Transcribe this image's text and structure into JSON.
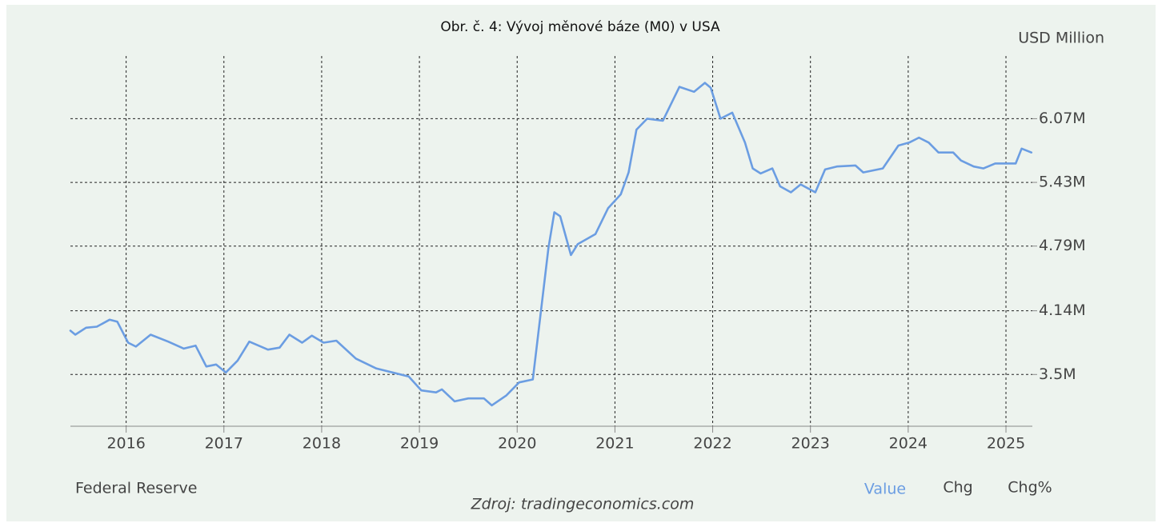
{
  "chart_data": {
    "type": "line",
    "title": "Obr. č. 4: Vývoj měnové báze (M0) v USA",
    "unit_label": "USD Million",
    "provider": "Federal Reserve",
    "tabs": [
      "Value",
      "Chg",
      "Chg%"
    ],
    "source": "Zdroj: tradingeconomics.com",
    "color": "#6b9de2",
    "grid": true,
    "xlim": [
      2015.43,
      2025.27
    ],
    "xticks": [
      2016,
      2017,
      2018,
      2019,
      2020,
      2021,
      2022,
      2023,
      2024,
      2025
    ],
    "ylim": [
      2.98,
      6.7
    ],
    "yticks": [
      {
        "value": 3.5,
        "label": "3.5M"
      },
      {
        "value": 4.14,
        "label": "4.14M"
      },
      {
        "value": 4.79,
        "label": "4.79M"
      },
      {
        "value": 5.43,
        "label": "5.43M"
      },
      {
        "value": 6.07,
        "label": "6.07M"
      }
    ],
    "x": [
      2015.43,
      2015.48,
      2015.59,
      2015.7,
      2015.83,
      2015.91,
      2016.02,
      2016.1,
      2016.25,
      2016.43,
      2016.59,
      2016.71,
      2016.82,
      2016.92,
      2017.02,
      2017.14,
      2017.26,
      2017.45,
      2017.57,
      2017.67,
      2017.8,
      2017.9,
      2018.02,
      2018.15,
      2018.35,
      2018.56,
      2018.89,
      2019.02,
      2019.17,
      2019.23,
      2019.36,
      2019.5,
      2019.66,
      2019.74,
      2019.89,
      2020.02,
      2020.16,
      2020.32,
      2020.38,
      2020.44,
      2020.55,
      2020.62,
      2020.8,
      2020.93,
      2021.06,
      2021.14,
      2021.22,
      2021.33,
      2021.49,
      2021.66,
      2021.81,
      2021.92,
      2021.98,
      2022.08,
      2022.2,
      2022.33,
      2022.41,
      2022.49,
      2022.61,
      2022.69,
      2022.8,
      2022.9,
      2023.05,
      2023.15,
      2023.27,
      2023.46,
      2023.54,
      2023.74,
      2023.9,
      2024.01,
      2024.11,
      2024.21,
      2024.31,
      2024.46,
      2024.54,
      2024.67,
      2024.77,
      2024.89,
      2025.1,
      2025.16,
      2025.26
    ],
    "values": [
      3.94,
      3.9,
      3.97,
      3.98,
      4.05,
      4.03,
      3.82,
      3.78,
      3.9,
      3.83,
      3.76,
      3.79,
      3.58,
      3.6,
      3.52,
      3.64,
      3.83,
      3.75,
      3.77,
      3.9,
      3.82,
      3.89,
      3.82,
      3.84,
      3.66,
      3.56,
      3.48,
      3.34,
      3.32,
      3.35,
      3.23,
      3.26,
      3.26,
      3.19,
      3.29,
      3.42,
      3.45,
      4.77,
      5.13,
      5.09,
      4.7,
      4.81,
      4.91,
      5.17,
      5.31,
      5.53,
      5.96,
      6.07,
      6.05,
      6.39,
      6.34,
      6.43,
      6.38,
      6.07,
      6.13,
      5.83,
      5.57,
      5.52,
      5.57,
      5.39,
      5.33,
      5.41,
      5.33,
      5.56,
      5.59,
      5.6,
      5.53,
      5.57,
      5.8,
      5.83,
      5.88,
      5.83,
      5.73,
      5.73,
      5.65,
      5.59,
      5.57,
      5.62,
      5.62,
      5.77,
      5.73
    ]
  }
}
